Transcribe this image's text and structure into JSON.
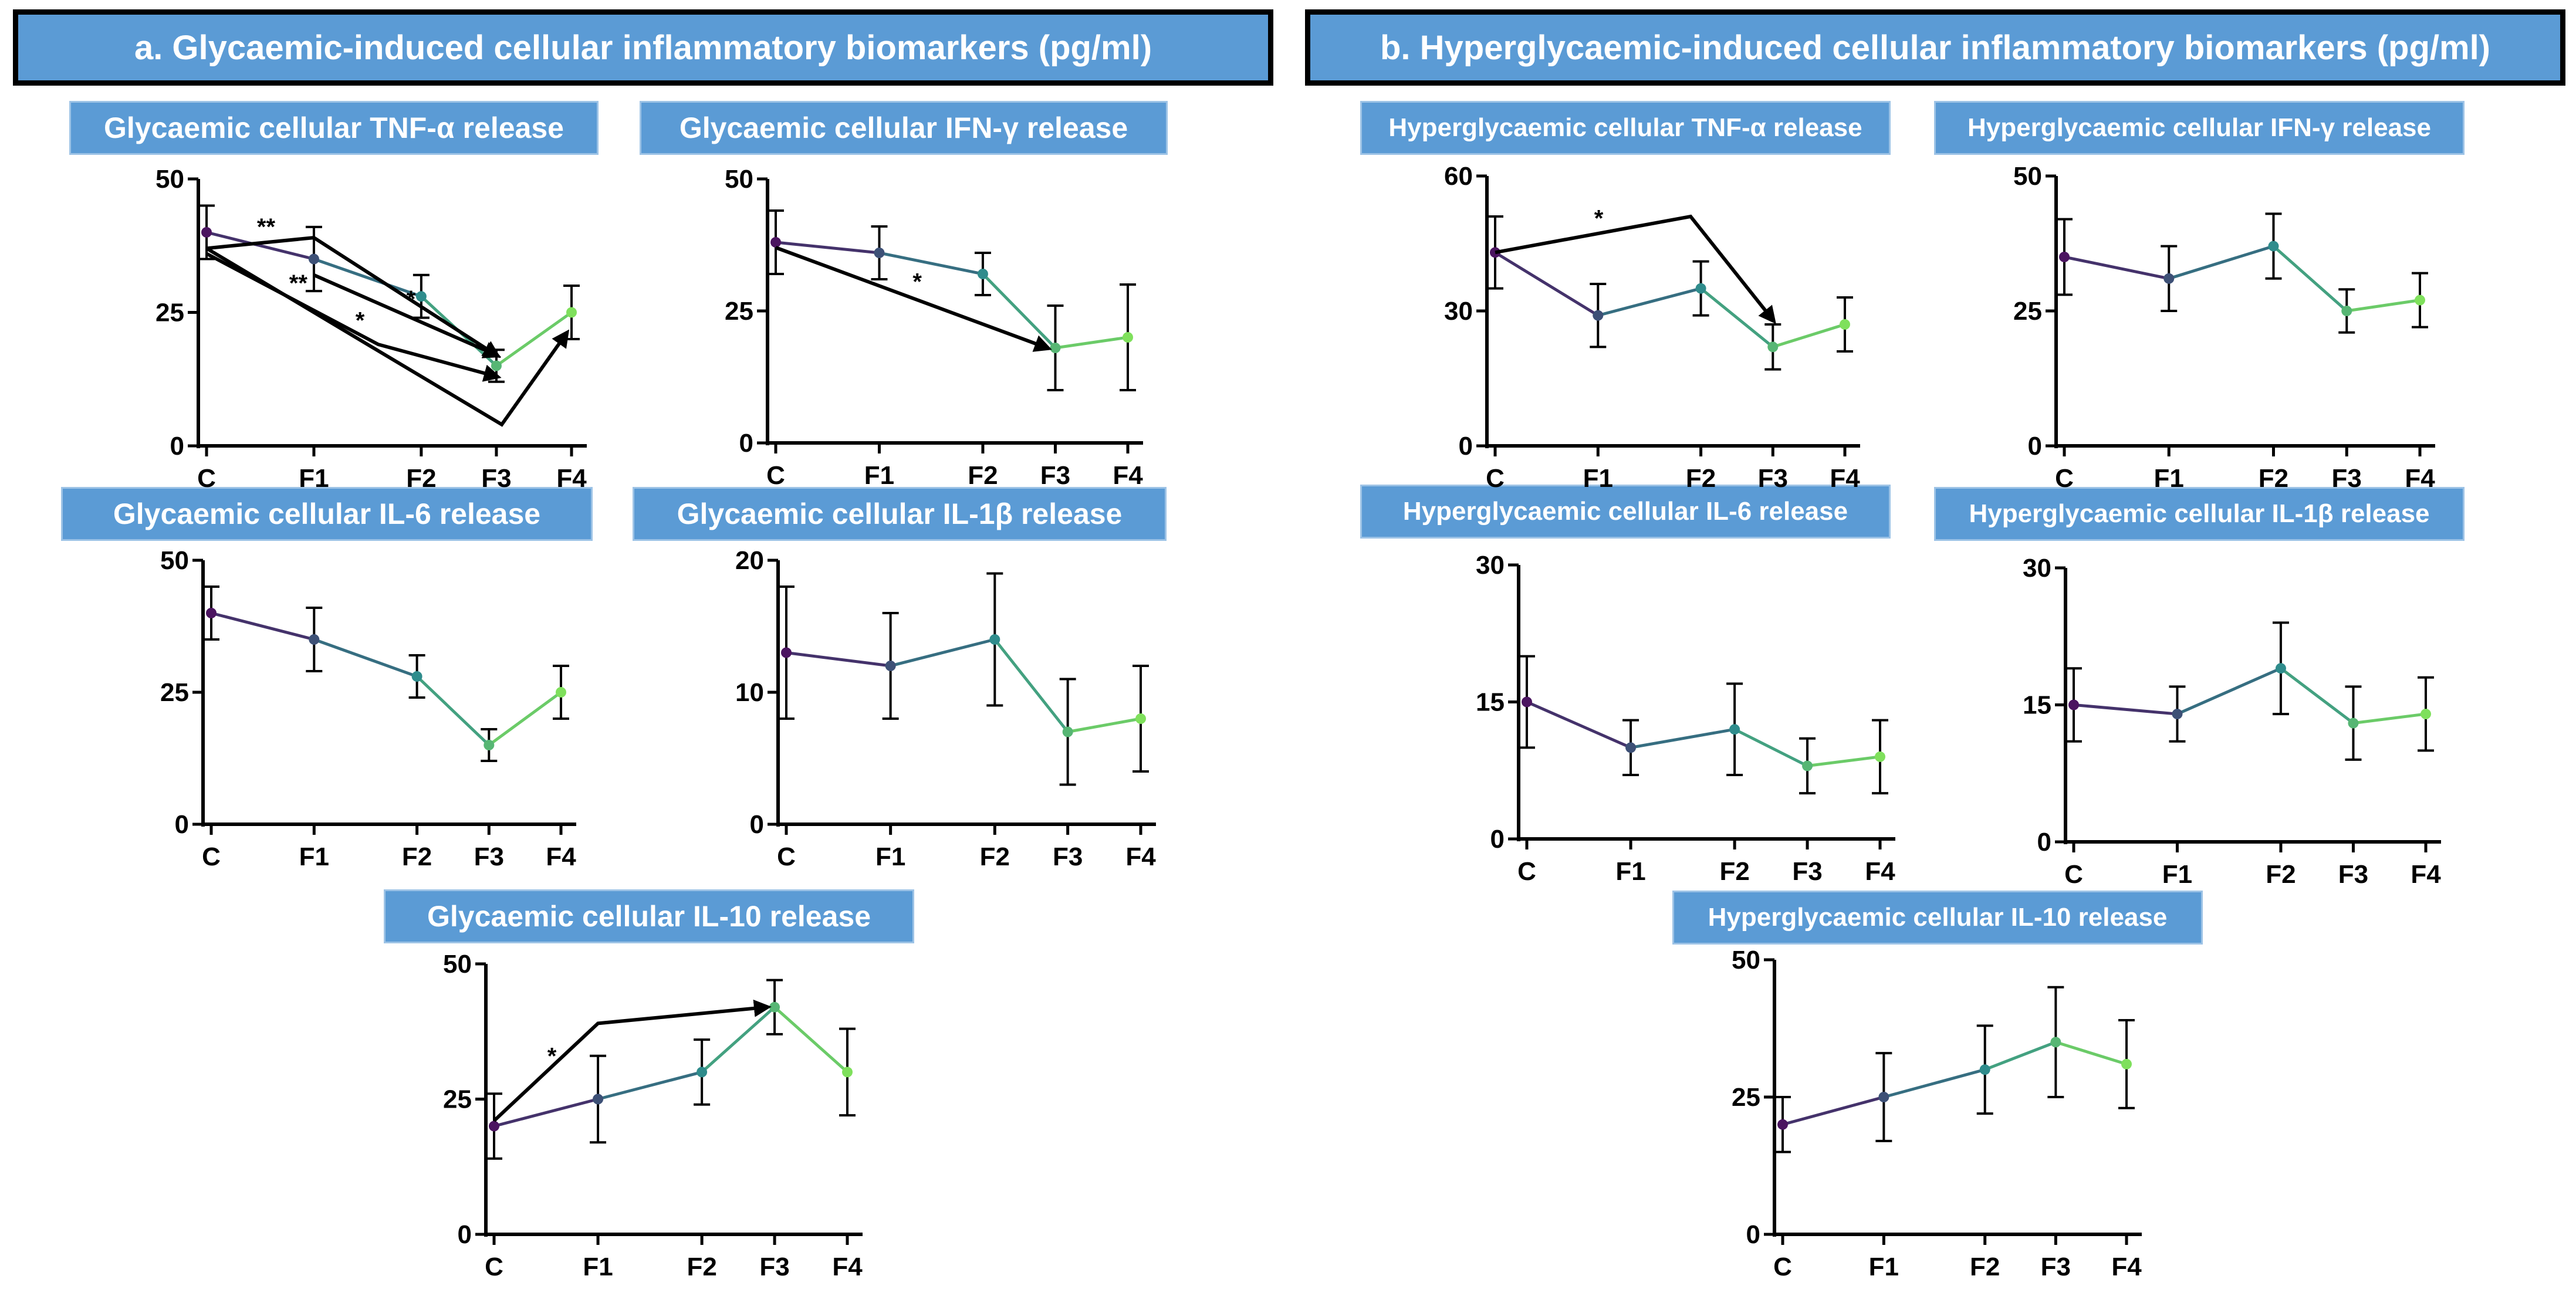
{
  "panels": {
    "a": {
      "title": "a. Glycaemic-induced cellular inflammatory biomarkers (pg/ml)"
    },
    "b": {
      "title": "b. Hyperglycaemic-induced cellular inflammatory biomarkers (pg/ml)"
    }
  },
  "colors": {
    "header_bg": "#5b9bd5",
    "title_bg": "#5b9bd5",
    "series_start": "#4b1460",
    "series_mid": "#2f8c8c",
    "series_end": "#7fe05c"
  },
  "chart_data": [
    {
      "id": "a_tnf",
      "type": "line",
      "title": "Glycaemic cellular TNF-α release",
      "categories": [
        "C",
        "F1",
        "F2",
        "F3",
        "F4"
      ],
      "yticks": [
        "0",
        "25",
        "50"
      ],
      "ylim": [
        0,
        50
      ],
      "x": [
        0,
        1,
        2,
        2.7,
        3.4
      ],
      "values": [
        40,
        35,
        28,
        15,
        25
      ],
      "errors": [
        5,
        6,
        4,
        3,
        5
      ],
      "annotations": [
        {
          "label": "**",
          "ab": [
            0,
            37,
            2.7,
            17
          ],
          "via": [
            1,
            39
          ]
        },
        {
          "label": "*",
          "ab": [
            1,
            32,
            2.7,
            17
          ]
        },
        {
          "label": "**",
          "ab": [
            0,
            36,
            2.7,
            13
          ],
          "via": [
            1.6,
            19
          ]
        },
        {
          "label": "*",
          "ab": [
            0,
            37,
            3.35,
            21
          ],
          "via": [
            2.75,
            4
          ]
        }
      ]
    },
    {
      "id": "a_ifn",
      "type": "line",
      "title": "Glycaemic cellular IFN-γ release",
      "categories": [
        "C",
        "F1",
        "F2",
        "F3",
        "F4"
      ],
      "yticks": [
        "0",
        "25",
        "50"
      ],
      "ylim": [
        0,
        50
      ],
      "x": [
        0,
        1,
        2,
        2.7,
        3.4
      ],
      "values": [
        38,
        36,
        32,
        18,
        20
      ],
      "errors": [
        6,
        5,
        4,
        8,
        10
      ],
      "annotations": [
        {
          "label": "*",
          "ab": [
            0,
            37,
            2.62,
            18
          ]
        }
      ]
    },
    {
      "id": "a_il6",
      "type": "line",
      "title": "Glycaemic cellular IL-6 release",
      "categories": [
        "C",
        "F1",
        "F2",
        "F3",
        "F4"
      ],
      "yticks": [
        "0",
        "25",
        "50"
      ],
      "ylim": [
        0,
        50
      ],
      "x": [
        0,
        1,
        2,
        2.7,
        3.4
      ],
      "values": [
        40,
        35,
        28,
        15,
        25
      ],
      "errors": [
        5,
        6,
        4,
        3,
        5
      ],
      "annotations": []
    },
    {
      "id": "a_il1b",
      "type": "line",
      "title": "Glycaemic cellular IL-1β release",
      "categories": [
        "C",
        "F1",
        "F2",
        "F3",
        "F4"
      ],
      "yticks": [
        "0",
        "10",
        "20"
      ],
      "ylim": [
        0,
        20
      ],
      "x": [
        0,
        1,
        2,
        2.7,
        3.4
      ],
      "values": [
        13,
        12,
        14,
        7,
        8
      ],
      "errors": [
        5,
        4,
        5,
        4,
        4
      ],
      "annotations": []
    },
    {
      "id": "a_il10",
      "type": "line",
      "title": "Glycaemic cellular IL-10 release",
      "categories": [
        "C",
        "F1",
        "F2",
        "F3",
        "F4"
      ],
      "yticks": [
        "0",
        "25",
        "50"
      ],
      "ylim": [
        0,
        50
      ],
      "x": [
        0,
        1,
        2,
        2.7,
        3.4
      ],
      "values": [
        20,
        25,
        30,
        42,
        30
      ],
      "errors": [
        6,
        8,
        6,
        5,
        8
      ],
      "annotations": [
        {
          "label": "*",
          "ab": [
            0,
            21,
            2.62,
            42
          ],
          "via": [
            1,
            39
          ]
        }
      ]
    },
    {
      "id": "b_tnf",
      "type": "line",
      "title": "Hyperglycaemic cellular TNF-α release",
      "categories": [
        "C",
        "F1",
        "F2",
        "F3",
        "F4"
      ],
      "yticks": [
        "0",
        "30",
        "60"
      ],
      "ylim": [
        0,
        60
      ],
      "x": [
        0,
        1,
        2,
        2.7,
        3.4
      ],
      "values": [
        43,
        29,
        35,
        22,
        27
      ],
      "errors": [
        8,
        7,
        6,
        5,
        6
      ],
      "annotations": [
        {
          "label": "*",
          "ab": [
            0,
            43,
            2.7,
            28
          ],
          "via": [
            1.9,
            51
          ]
        }
      ]
    },
    {
      "id": "b_ifn",
      "type": "line",
      "title": "Hyperglycaemic cellular IFN-γ release",
      "categories": [
        "C",
        "F1",
        "F2",
        "F3",
        "F4"
      ],
      "yticks": [
        "0",
        "25",
        "50"
      ],
      "ylim": [
        0,
        50
      ],
      "x": [
        0,
        1,
        2,
        2.7,
        3.4
      ],
      "values": [
        35,
        31,
        37,
        25,
        27
      ],
      "errors": [
        7,
        6,
        6,
        4,
        5
      ],
      "annotations": []
    },
    {
      "id": "b_il6",
      "type": "line",
      "title": "Hyperglycaemic cellular IL-6 release",
      "categories": [
        "C",
        "F1",
        "F2",
        "F3",
        "F4"
      ],
      "yticks": [
        "0",
        "15",
        "30"
      ],
      "ylim": [
        0,
        30
      ],
      "x": [
        0,
        1,
        2,
        2.7,
        3.4
      ],
      "values": [
        15,
        10,
        12,
        8,
        9
      ],
      "errors": [
        5,
        3,
        5,
        3,
        4
      ],
      "annotations": []
    },
    {
      "id": "b_il1b",
      "type": "line",
      "title": "Hyperglycaemic cellular IL-1β release",
      "categories": [
        "C",
        "F1",
        "F2",
        "F3",
        "F4"
      ],
      "yticks": [
        "0",
        "15",
        "30"
      ],
      "ylim": [
        0,
        30
      ],
      "x": [
        0,
        1,
        2,
        2.7,
        3.4
      ],
      "values": [
        15,
        14,
        19,
        13,
        14
      ],
      "errors": [
        4,
        3,
        5,
        4,
        4
      ],
      "annotations": []
    },
    {
      "id": "b_il10",
      "type": "line",
      "title": "Hyperglycaemic cellular IL-10 release",
      "categories": [
        "C",
        "F1",
        "F2",
        "F3",
        "F4"
      ],
      "yticks": [
        "0",
        "25",
        "50"
      ],
      "ylim": [
        0,
        50
      ],
      "x": [
        0,
        1,
        2,
        2.7,
        3.4
      ],
      "values": [
        20,
        25,
        30,
        35,
        31
      ],
      "errors": [
        5,
        8,
        8,
        10,
        8
      ],
      "annotations": []
    }
  ]
}
